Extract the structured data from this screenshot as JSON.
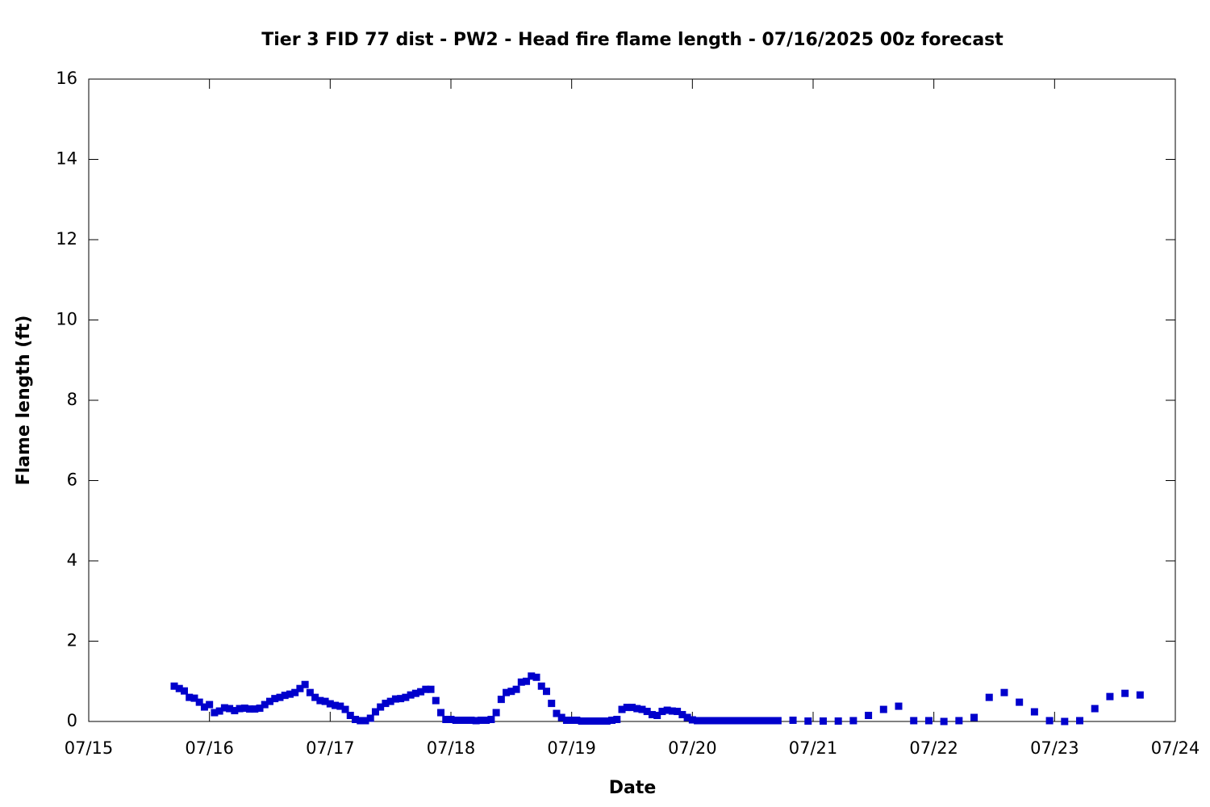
{
  "chart_data": {
    "type": "scatter",
    "title": "Tier 3 FID 77 dist - PW2 - Head fire flame length - 07/16/2025 00z forecast",
    "x_label": "Date",
    "y_label": "Flame length (ft)",
    "xlim": [
      0,
      216
    ],
    "ylim": [
      0,
      16
    ],
    "xticks": [
      {
        "value": 0,
        "label": "07/15"
      },
      {
        "value": 24,
        "label": "07/16"
      },
      {
        "value": 48,
        "label": "07/17"
      },
      {
        "value": 72,
        "label": "07/18"
      },
      {
        "value": 96,
        "label": "07/19"
      },
      {
        "value": 120,
        "label": "07/20"
      },
      {
        "value": 144,
        "label": "07/21"
      },
      {
        "value": 168,
        "label": "07/22"
      },
      {
        "value": 192,
        "label": "07/23"
      },
      {
        "value": 216,
        "label": "07/24"
      }
    ],
    "yticks": [
      0,
      2,
      4,
      6,
      8,
      10,
      12,
      14,
      16
    ],
    "grid": false,
    "series": [
      {
        "color": "#0000cc",
        "x": [
          17,
          18,
          19,
          20,
          21,
          22,
          23,
          24,
          25,
          26,
          27,
          28,
          29,
          30,
          31,
          32,
          33,
          34,
          35,
          36,
          37,
          38,
          39,
          40,
          41,
          42,
          43,
          44,
          45,
          46,
          47,
          48,
          49,
          50,
          51,
          52,
          53,
          54,
          55,
          56,
          57,
          58,
          59,
          60,
          61,
          62,
          63,
          64,
          65,
          66,
          67,
          68,
          69,
          70,
          71,
          72,
          73,
          74,
          75,
          76,
          77,
          78,
          79,
          80,
          81,
          82,
          83,
          84,
          85,
          86,
          87,
          88,
          89,
          90,
          91,
          92,
          93,
          94,
          95,
          96,
          97,
          98,
          99,
          100,
          101,
          102,
          103,
          104,
          105,
          106,
          107,
          108,
          109,
          110,
          111,
          112,
          113,
          114,
          115,
          116,
          117,
          118,
          119,
          120,
          121,
          122,
          123,
          124,
          125,
          126,
          127,
          128,
          129,
          130,
          131,
          132,
          133,
          134,
          135,
          136,
          137,
          140,
          143,
          146,
          149,
          152,
          155,
          158,
          161,
          164,
          167,
          170,
          173,
          176,
          179,
          182,
          185,
          188,
          191,
          194,
          197,
          200,
          203,
          206,
          209
        ],
        "values": [
          0.88,
          0.82,
          0.76,
          0.6,
          0.58,
          0.48,
          0.36,
          0.42,
          0.22,
          0.26,
          0.34,
          0.32,
          0.27,
          0.32,
          0.33,
          0.31,
          0.31,
          0.33,
          0.42,
          0.5,
          0.57,
          0.6,
          0.65,
          0.68,
          0.72,
          0.82,
          0.92,
          0.72,
          0.6,
          0.52,
          0.5,
          0.44,
          0.4,
          0.38,
          0.3,
          0.15,
          0.05,
          0.02,
          0.02,
          0.08,
          0.24,
          0.36,
          0.45,
          0.5,
          0.56,
          0.57,
          0.6,
          0.66,
          0.7,
          0.74,
          0.8,
          0.8,
          0.52,
          0.22,
          0.05,
          0.05,
          0.03,
          0.03,
          0.03,
          0.03,
          0.02,
          0.03,
          0.03,
          0.05,
          0.22,
          0.55,
          0.72,
          0.75,
          0.8,
          0.98,
          1.0,
          1.13,
          1.1,
          0.88,
          0.75,
          0.45,
          0.2,
          0.1,
          0.03,
          0.03,
          0.03,
          0.01,
          0.01,
          0.01,
          0.01,
          0.01,
          0.01,
          0.03,
          0.05,
          0.3,
          0.35,
          0.35,
          0.32,
          0.3,
          0.25,
          0.17,
          0.15,
          0.25,
          0.28,
          0.26,
          0.25,
          0.17,
          0.1,
          0.04,
          0.02,
          0.02,
          0.02,
          0.02,
          0.02,
          0.02,
          0.02,
          0.02,
          0.02,
          0.02,
          0.02,
          0.02,
          0.02,
          0.02,
          0.02,
          0.02,
          0.02,
          0.03,
          0.01,
          0.01,
          0.01,
          0.02,
          0.15,
          0.3,
          0.38,
          0.02,
          0.02,
          0.0,
          0.02,
          0.1,
          0.6,
          0.72,
          0.48,
          0.24,
          0.02,
          0.0,
          0.02,
          0.32,
          0.62,
          0.7,
          0.66
        ]
      }
    ]
  }
}
